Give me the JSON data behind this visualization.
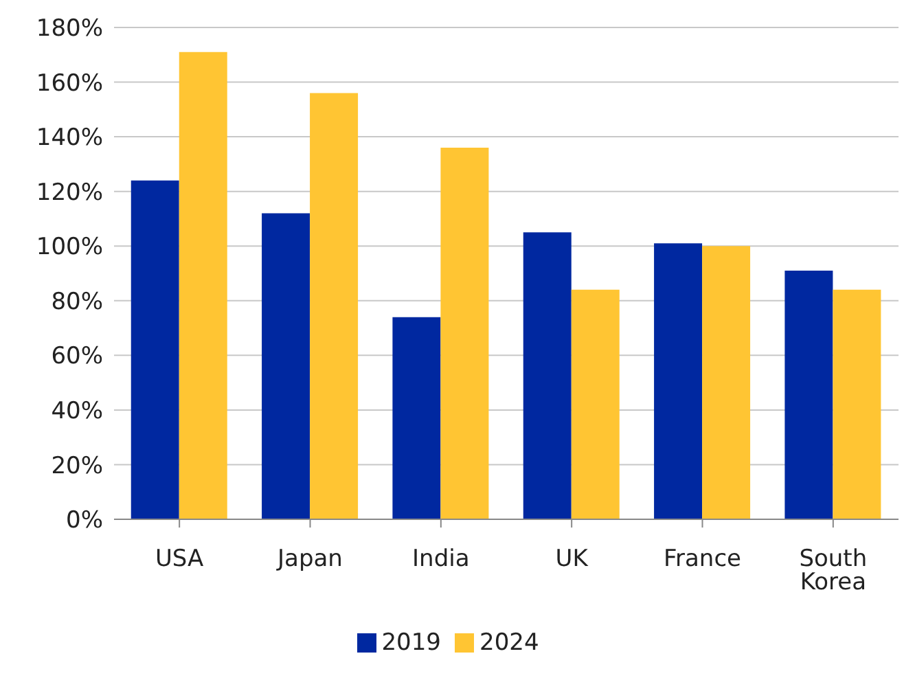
{
  "chart_data": {
    "type": "bar",
    "categories": [
      "USA",
      "Japan",
      "India",
      "UK",
      "France",
      "South Korea"
    ],
    "series": [
      {
        "name": "2019",
        "color": "#0028a0",
        "values": [
          124,
          112,
          74,
          105,
          101,
          91
        ]
      },
      {
        "name": "2024",
        "color": "#ffc533",
        "values": [
          171,
          156,
          136,
          84,
          100,
          84
        ]
      }
    ],
    "ylim": [
      0,
      180
    ],
    "yticks": [
      {
        "value": 0,
        "label": "0%"
      },
      {
        "value": 20,
        "label": "20%"
      },
      {
        "value": 40,
        "label": "40%"
      },
      {
        "value": 60,
        "label": "60%"
      },
      {
        "value": 80,
        "label": "80%"
      },
      {
        "value": 100,
        "label": "100%"
      },
      {
        "value": 120,
        "label": "120%"
      },
      {
        "value": 140,
        "label": "140%"
      },
      {
        "value": 160,
        "label": "160%"
      },
      {
        "value": 180,
        "label": "180%"
      }
    ],
    "grid": "y",
    "legend": "bottom"
  }
}
